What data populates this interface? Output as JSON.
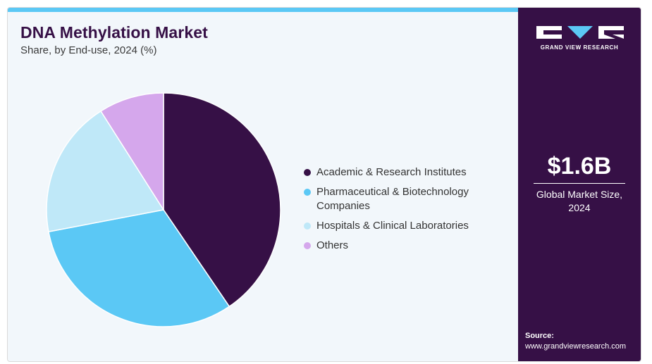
{
  "header": {
    "title": "DNA Methylation Market",
    "subtitle": "Share, by End-use, 2024 (%)"
  },
  "brand": {
    "logo_text": "GRAND VIEW RESEARCH",
    "logo_icon": "gvr-logo-icon",
    "accent_color": "#5bc8f5",
    "panel_color": "#361046"
  },
  "summary": {
    "value": "$1.6B",
    "label": "Global Market Size, 2024"
  },
  "source": {
    "label": "Source:",
    "url": "www.grandviewresearch.com"
  },
  "chart_data": {
    "type": "pie",
    "title": "DNA Methylation Market",
    "subtitle": "Share, by End-use, 2024 (%)",
    "legend_position": "right",
    "series": [
      {
        "name": "Academic & Research Institutes",
        "value": 40.5,
        "color": "#361046"
      },
      {
        "name": "Pharmaceutical & Biotechnology Companies",
        "value": 31.5,
        "color": "#5bc8f5"
      },
      {
        "name": "Hospitals & Clinical Laboratories",
        "value": 19.0,
        "color": "#bfe8f8"
      },
      {
        "name": "Others",
        "value": 9.0,
        "color": "#d5a7ec"
      }
    ]
  }
}
